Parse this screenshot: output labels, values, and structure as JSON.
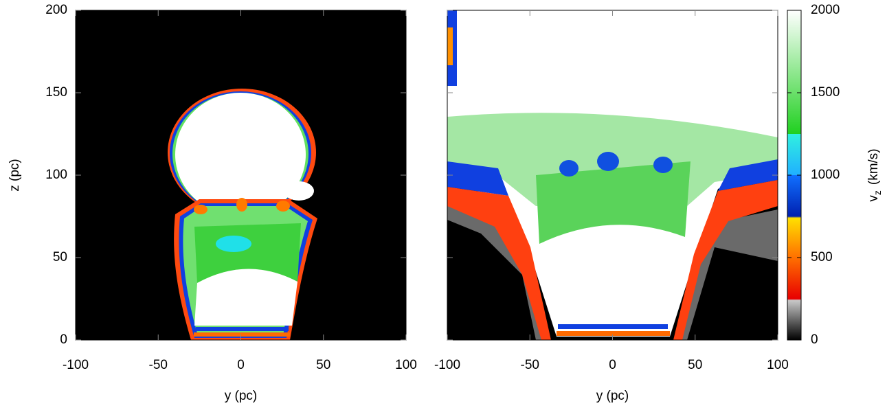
{
  "chart_data": [
    {
      "type": "heatmap",
      "xlabel": "y (pc)",
      "ylabel": "z (pc)",
      "xlim": [
        -100,
        100
      ],
      "ylim": [
        0,
        200
      ],
      "xticks": [
        -100,
        -50,
        0,
        50,
        100
      ],
      "yticks": [
        0,
        50,
        100,
        150,
        200
      ],
      "ytick_labels": true
    },
    {
      "type": "heatmap",
      "xlabel": "y (pc)",
      "xlim": [
        -100,
        100
      ],
      "ylim": [
        0,
        200
      ],
      "xticks": [
        -100,
        -50,
        0,
        50,
        100
      ],
      "yticks": [
        0,
        50,
        100,
        150,
        200
      ],
      "ytick_labels": false,
      "colorbar": {
        "label": {
          "main": "v",
          "sub": "z",
          "unit": "(km/s)"
        },
        "lim": [
          0,
          2000
        ],
        "ticks": [
          0,
          500,
          1000,
          1500,
          2000
        ]
      }
    }
  ]
}
